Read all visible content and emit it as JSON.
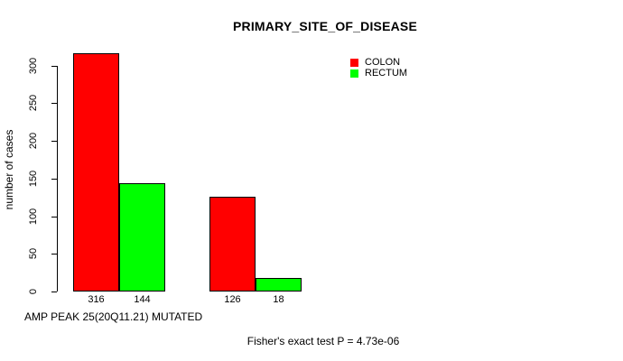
{
  "chart_data": {
    "type": "bar",
    "title": "PRIMARY_SITE_OF_DISEASE",
    "ylabel": "number of cases",
    "xlabel": "AMP PEAK 25(20Q11.21) MUTATED",
    "footnote": "Fisher's exact test P = 4.73e-06",
    "ylim": [
      0,
      325
    ],
    "yticks": [
      0,
      50,
      100,
      150,
      200,
      250,
      300
    ],
    "grid": false,
    "bar_border_color": "#000000",
    "series": [
      {
        "name": "COLON",
        "color": "#FF0000"
      },
      {
        "name": "RECTUM",
        "color": "#00FF00"
      }
    ],
    "groups": [
      {
        "bars": [
          {
            "series": "COLON",
            "value": 316
          },
          {
            "series": "RECTUM",
            "value": 144
          }
        ]
      },
      {
        "bars": [
          {
            "series": "COLON",
            "value": 126
          },
          {
            "series": "RECTUM",
            "value": 18
          }
        ]
      }
    ],
    "bar_value_labels": [
      "316",
      "144",
      "126",
      "18"
    ],
    "legend": {
      "position": "top-right",
      "entries": [
        {
          "label": "COLON",
          "color": "#FF0000"
        },
        {
          "label": "RECTUM",
          "color": "#00FF00"
        }
      ]
    }
  }
}
